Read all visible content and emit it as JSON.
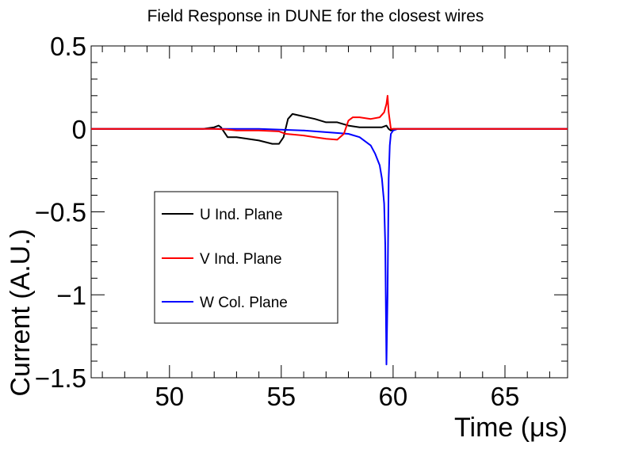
{
  "chart_data": {
    "type": "line",
    "title": "Field Response in DUNE for the closest wires",
    "xlabel": "Time (μs)",
    "ylabel": "Current (A.U.)",
    "xlim": [
      46.5,
      67.8
    ],
    "ylim": [
      -1.5,
      0.5
    ],
    "xticks": [
      50,
      55,
      60,
      65
    ],
    "xtick_labels": [
      "50",
      "55",
      "60",
      "65"
    ],
    "yticks": [
      -1.5,
      -1,
      -0.5,
      0,
      0.5
    ],
    "ytick_labels": [
      "−1.5",
      "−1",
      "−0.5",
      "0",
      "0.5"
    ],
    "grid": false,
    "legend_position": "center-left",
    "series": [
      {
        "name": "U Ind. Plane",
        "color": "#000000",
        "x": [
          46.5,
          51.5,
          52.0,
          52.2,
          52.3,
          52.6,
          53.0,
          54.0,
          54.6,
          54.9,
          55.1,
          55.3,
          55.5,
          56.5,
          57.0,
          57.5,
          58.0,
          58.5,
          59.0,
          59.5,
          59.7,
          59.8,
          59.9,
          60.0,
          60.2,
          67.8
        ],
        "y": [
          0.0,
          0.0,
          0.01,
          0.02,
          0.01,
          -0.05,
          -0.05,
          -0.07,
          -0.09,
          -0.09,
          -0.05,
          0.06,
          0.09,
          0.06,
          0.04,
          0.04,
          0.02,
          0.01,
          0.01,
          0.01,
          0.02,
          0.0,
          -0.01,
          0.0,
          0.0,
          0.0
        ]
      },
      {
        "name": "V Ind. Plane",
        "color": "#ff0000",
        "x": [
          46.5,
          52.0,
          52.5,
          53.0,
          54.0,
          54.9,
          55.2,
          56.0,
          56.5,
          57.0,
          57.5,
          57.8,
          58.0,
          58.2,
          58.5,
          59.0,
          59.4,
          59.6,
          59.7,
          59.75,
          59.8,
          59.9,
          60.0,
          60.2,
          67.8
        ],
        "y": [
          0.0,
          0.0,
          -0.003,
          -0.01,
          -0.01,
          -0.015,
          -0.03,
          -0.04,
          -0.05,
          -0.06,
          -0.065,
          -0.03,
          0.05,
          0.07,
          0.07,
          0.06,
          0.07,
          0.1,
          0.15,
          0.2,
          0.1,
          0.0,
          0.0,
          0.0,
          0.0
        ]
      },
      {
        "name": "W Col. Plane",
        "color": "#0000ff",
        "x": [
          46.5,
          54.0,
          55.0,
          56.0,
          57.0,
          58.0,
          58.5,
          59.0,
          59.2,
          59.4,
          59.5,
          59.6,
          59.65,
          59.7,
          59.75,
          59.8,
          59.85,
          59.9,
          60.0,
          60.2,
          67.8
        ],
        "y": [
          0.0,
          0.0,
          -0.005,
          -0.01,
          -0.02,
          -0.03,
          -0.05,
          -0.1,
          -0.15,
          -0.22,
          -0.3,
          -0.45,
          -0.7,
          -1.42,
          -1.0,
          -0.3,
          -0.1,
          -0.03,
          -0.01,
          0.0,
          0.0
        ]
      }
    ]
  }
}
